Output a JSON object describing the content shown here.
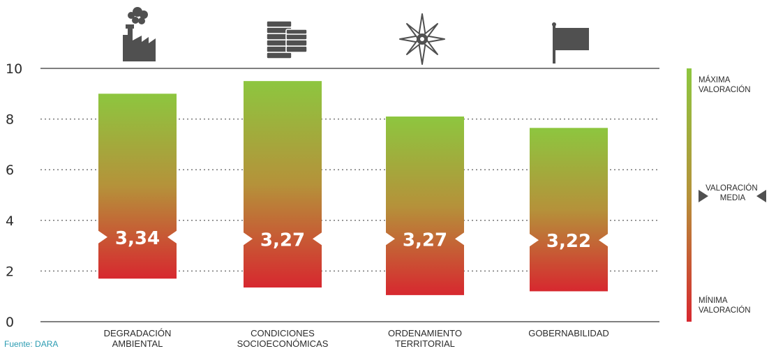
{
  "chart_data": {
    "type": "bar",
    "categories": [
      [
        "DEGRADACIÓN",
        "AMBIENTAL"
      ],
      [
        "CONDICIONES",
        "SOCIOECONÓMICAS"
      ],
      [
        "ORDENAMIENTO",
        "TERRITORIAL"
      ],
      [
        "GOBERNABILIDAD"
      ]
    ],
    "icons": [
      "factory-icon",
      "coins-icon",
      "compass-rose-icon",
      "flag-icon"
    ],
    "ranges": [
      [
        1.7,
        9.0
      ],
      [
        1.35,
        9.5
      ],
      [
        1.05,
        8.1
      ],
      [
        1.2,
        7.65
      ]
    ],
    "value_labels": [
      "3,34",
      "3,27",
      "3,27",
      "3,22"
    ],
    "values": [
      3.34,
      3.27,
      3.27,
      3.22
    ],
    "ylim": [
      0,
      10
    ],
    "yticks": [
      "0",
      "2",
      "4",
      "6",
      "8",
      "10"
    ],
    "grid": true,
    "legend": {
      "max": [
        "MÁXIMA",
        "VALORACIÓN"
      ],
      "mid": [
        "VALORACIÓN",
        "MEDIA"
      ],
      "min": [
        "MÍNIMA",
        "VALORACIÓN"
      ]
    },
    "colors": {
      "top": "#8dc63f",
      "mid": "#b5923a",
      "bottom": "#d7282f",
      "source": "#2a9bb1"
    }
  },
  "source": "Fuente: DARA"
}
